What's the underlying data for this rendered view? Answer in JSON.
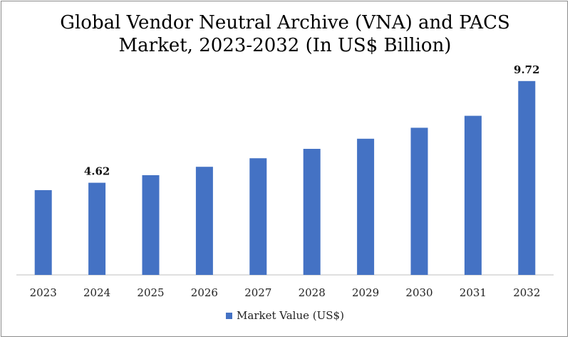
{
  "title_line1": "Global Vendor Neutral Archive (VNA) and PACS",
  "title_line2": "Market, 2023-2032 (In US$ Billion)",
  "legend_label": "Market Value (US$)",
  "colors": {
    "bar": "#4472c4",
    "axis": "#bfbfbf"
  },
  "chart_data": {
    "type": "bar",
    "title": "Global Vendor Neutral Archive (VNA) and PACS Market, 2023-2032 (In US$ Billion)",
    "categories": [
      "2023",
      "2024",
      "2025",
      "2026",
      "2027",
      "2028",
      "2029",
      "2030",
      "2031",
      "2032"
    ],
    "series": [
      {
        "name": "Market Value (US$)",
        "values": [
          4.25,
          4.62,
          5.0,
          5.42,
          5.85,
          6.32,
          6.83,
          7.38,
          7.98,
          9.72
        ]
      }
    ],
    "data_labels": [
      {
        "category": "2024",
        "text": "4.62"
      },
      {
        "category": "2032",
        "text": "9.72"
      }
    ],
    "ylim": [
      0,
      10
    ],
    "grid": false,
    "legend_position": "bottom"
  }
}
